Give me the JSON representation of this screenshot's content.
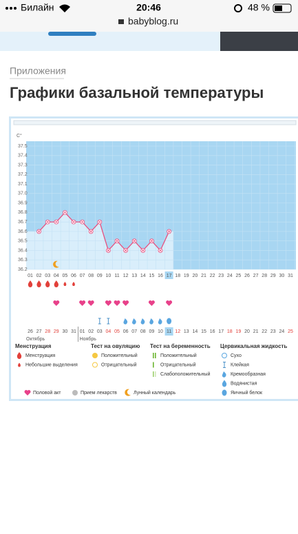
{
  "status_bar": {
    "carrier": "Билайн",
    "time": "20:46",
    "battery": "48 %",
    "url": "babyblog.ru"
  },
  "breadcrumb": "Приложения",
  "title": "Графики базальной температуры",
  "chart_data": {
    "type": "line",
    "y_label": "C°",
    "categories": [
      "01",
      "02",
      "03",
      "04",
      "05",
      "06",
      "07",
      "08",
      "09",
      "10",
      "11",
      "12",
      "13",
      "14",
      "15",
      "16",
      "17",
      "18",
      "19",
      "20",
      "21",
      "22",
      "23",
      "24",
      "25",
      "26",
      "27",
      "28",
      "29",
      "30",
      "31"
    ],
    "series": [
      {
        "color": "#e8507f",
        "values": [
          null,
          36.6,
          36.7,
          36.7,
          36.8,
          36.7,
          36.7,
          36.6,
          36.7,
          36.4,
          36.5,
          36.4,
          36.5,
          36.4,
          36.5,
          36.4,
          36.6,
          null,
          null,
          null,
          null,
          null,
          null,
          null,
          null,
          null,
          null,
          null,
          null,
          null,
          null
        ]
      }
    ],
    "ylim": [
      36.2,
      37.5
    ],
    "yticks": [
      36.2,
      36.3,
      36.4,
      36.5,
      36.6,
      36.7,
      36.8,
      36.9,
      {
        "value": 37,
        "label": "37.0"
      },
      37.1,
      37.2,
      37.3,
      37.4,
      37.5
    ],
    "highlight_day": "17",
    "icon_rows": [
      {
        "icon": "drop-big",
        "color": "#e2403a",
        "days": [
          "01",
          "02",
          "03",
          "04"
        ]
      },
      {
        "icon": "drop-small",
        "color": "#e2403a",
        "days": [
          "05",
          "06"
        ]
      },
      {
        "icon": "heart",
        "color": "#e8418a",
        "days": [
          "04",
          "07",
          "08",
          "10",
          "11",
          "12",
          "15",
          "17"
        ]
      },
      {
        "icon": "sticky",
        "color": "#4a90c8",
        "days": [
          "09",
          "10"
        ]
      },
      {
        "icon": "creamy",
        "color": "#5aa6e0",
        "days": [
          "12",
          "13",
          "14",
          "15",
          "16"
        ]
      },
      {
        "icon": "egg",
        "color": "#5aa6e0",
        "days": [
          "17"
        ]
      },
      {
        "icon": "moon",
        "color": "#f0a020",
        "days": [
          "04"
        ]
      }
    ],
    "date_row": {
      "labels": [
        "26",
        "27",
        "28",
        "29",
        "30",
        "31",
        "01",
        "02",
        "03",
        "04",
        "05",
        "06",
        "07",
        "08",
        "09",
        "10",
        "11",
        "12",
        "13",
        "14",
        "15",
        "16",
        "17",
        "18",
        "19",
        "20",
        "21",
        "22",
        "23",
        "24",
        "25"
      ],
      "colors": [
        "#555",
        "#555",
        "#e2403a",
        "#e2403a",
        "#555",
        "#555",
        "#555",
        "#555",
        "#555",
        "#e2403a",
        "#e2403a",
        "#555",
        "#555",
        "#555",
        "#555",
        "#555",
        "#555",
        "#e2403a",
        "#555",
        "#555",
        "#555",
        "#555",
        "#555",
        "#e2403a",
        "#e2403a",
        "#555",
        "#555",
        "#555",
        "#555",
        "#555",
        "#e2403a"
      ],
      "highlight": "11",
      "months": [
        "Октябрь",
        "Ноябрь"
      ]
    }
  },
  "legend": {
    "groups": [
      {
        "title": "Менструация",
        "items": [
          "Менструация",
          "Небольшие выделения"
        ]
      },
      {
        "title": "Тест на овуляцию",
        "items": [
          "Положительный",
          "Отрицательный"
        ]
      },
      {
        "title": "Тест на беременность",
        "items": [
          "Положительный",
          "Отрицательный",
          "Слабоположительный"
        ]
      },
      {
        "title": "Цервикальная жидкость",
        "items": [
          "Сухо",
          "Клейкая",
          "Кремообразная",
          "Водянистая",
          "Яичный белок"
        ]
      }
    ],
    "bottom": [
      "Половой акт",
      "Прием лекарств",
      "Лунный календарь"
    ]
  }
}
